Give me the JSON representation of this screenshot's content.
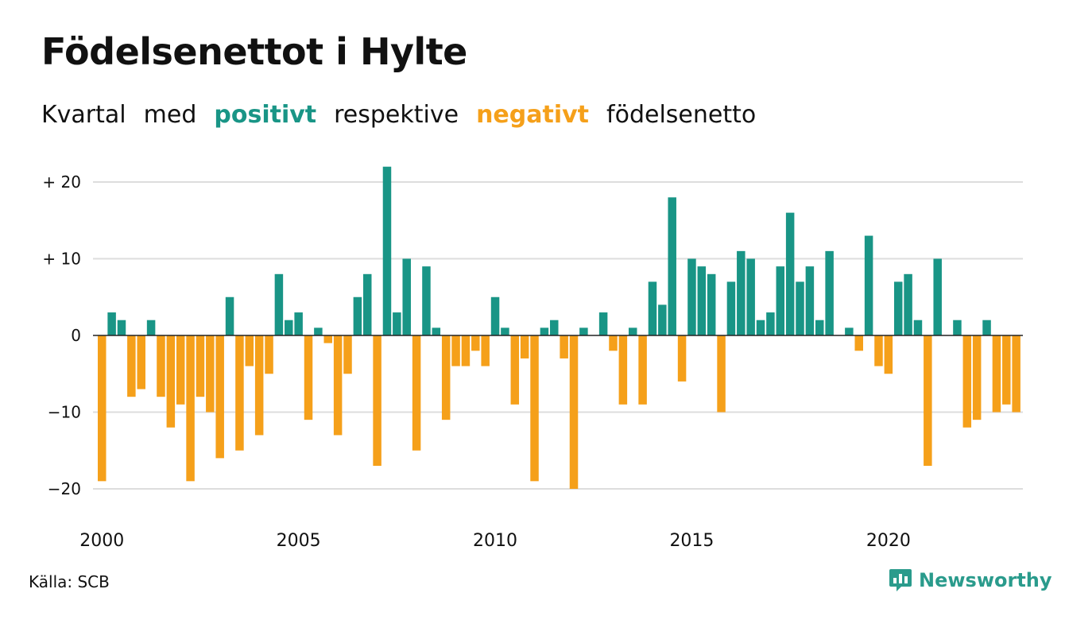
{
  "title": "Födelsenettot i Hylte",
  "subtitle": {
    "w1": "Kvartal",
    "w2": "med",
    "positive": "positivt",
    "w3": "respektive",
    "negative": "negativt",
    "w4": "födelsenetto"
  },
  "source": "Källa: SCB",
  "brand": "Newsworthy",
  "colors": {
    "positive": "#199586",
    "negative": "#f5a01a",
    "grid": "#dddddd",
    "brand": "#2a9b8c"
  },
  "chart_data": {
    "type": "bar",
    "x_start_year": 2000,
    "periods_per_year": 4,
    "values": [
      -19,
      3,
      2,
      -8,
      -7,
      2,
      -8,
      -12,
      -9,
      -19,
      -8,
      -10,
      -16,
      5,
      -15,
      -4,
      -13,
      -5,
      8,
      2,
      3,
      -11,
      1,
      -1,
      -13,
      -5,
      5,
      8,
      -17,
      22,
      3,
      10,
      -15,
      9,
      1,
      -11,
      -4,
      -4,
      -2,
      -4,
      5,
      1,
      -9,
      -3,
      -19,
      1,
      2,
      -3,
      -20,
      1,
      0,
      3,
      -2,
      -9,
      1,
      -9,
      7,
      4,
      18,
      -6,
      10,
      9,
      8,
      -10,
      7,
      11,
      10,
      2,
      3,
      9,
      16,
      7,
      9,
      2,
      11,
      0,
      1,
      -2,
      13,
      -4,
      -5,
      7,
      8,
      2,
      -17,
      10,
      0,
      2,
      -12,
      -11,
      2,
      -10,
      -9,
      -10
    ],
    "y_ticks": [
      20,
      10,
      0,
      -10,
      -20
    ],
    "y_tick_labels": [
      "+ 20",
      "+ 10",
      "0",
      "−10",
      "−20"
    ],
    "x_tick_labels": [
      "2000",
      "2005",
      "2010",
      "2015",
      "2020"
    ],
    "ylim": [
      -22,
      22
    ],
    "grid": true
  }
}
